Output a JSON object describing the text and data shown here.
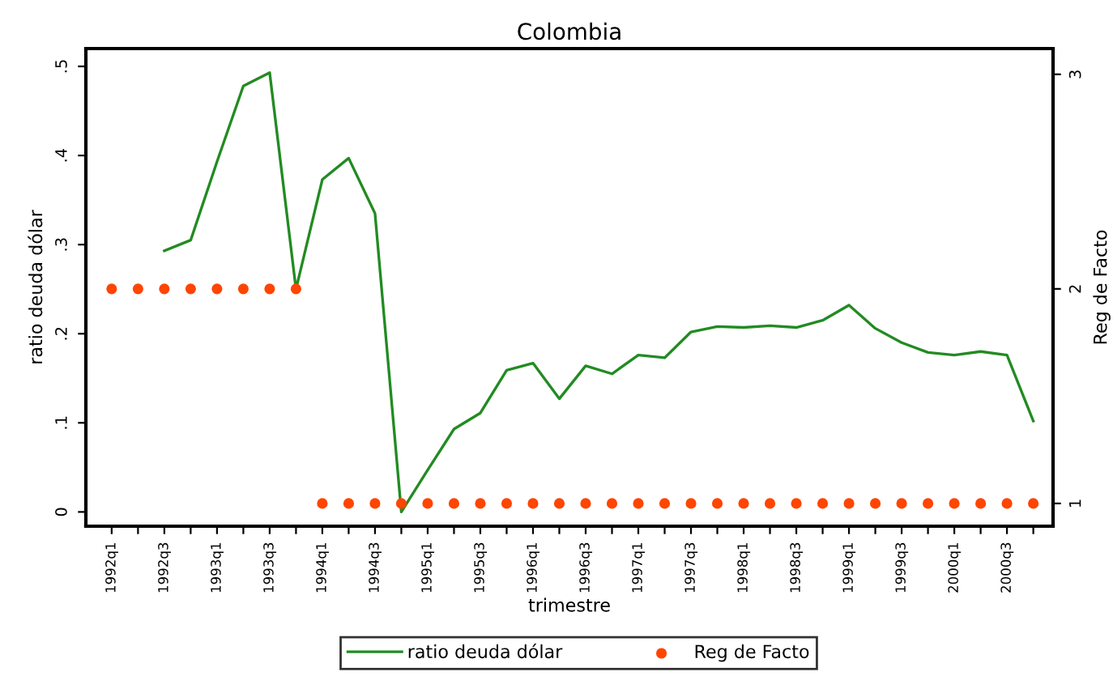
{
  "chart_data": {
    "type": "line",
    "title": "Colombia",
    "xlabel": "trimestre",
    "ylabel": "ratio deuda dólar",
    "y2label": "Reg de Facto",
    "categories": [
      "1992q1",
      null,
      "1992q3",
      null,
      "1993q1",
      null,
      "1993q3",
      null,
      "1994q1",
      null,
      "1994q3",
      null,
      "1995q1",
      null,
      "1995q3",
      null,
      "1996q1",
      null,
      "1996q3",
      null,
      "1997q1",
      null,
      "1997q3",
      null,
      "1998q1",
      null,
      "1998q3",
      null,
      "1999q1",
      null,
      "1999q3",
      null,
      "2000q1",
      null,
      "2000q3",
      null
    ],
    "series": [
      {
        "name": "ratio deuda dólar",
        "type": "line",
        "color": "#228b22",
        "line_style": "solid",
        "values": [
          null,
          null,
          0.293,
          0.305,
          0.393,
          0.478,
          0.493,
          0.25,
          0.373,
          0.397,
          0.335,
          0.0,
          0.047,
          0.093,
          0.111,
          0.159,
          0.167,
          0.127,
          0.164,
          0.155,
          0.176,
          0.173,
          0.202,
          0.208,
          0.207,
          0.209,
          0.207,
          0.215,
          0.232,
          0.206,
          0.19,
          0.179,
          0.176,
          0.18,
          0.176,
          0.102
        ]
      },
      {
        "name": "Reg de Facto",
        "type": "scatter",
        "axis": "y2",
        "marker": "circle",
        "color": "#ff4500",
        "values": [
          2,
          2,
          2,
          2,
          2,
          2,
          2,
          2,
          1,
          1,
          1,
          1,
          1,
          1,
          1,
          1,
          1,
          1,
          1,
          1,
          1,
          1,
          1,
          1,
          1,
          1,
          1,
          1,
          1,
          1,
          1,
          1,
          1,
          1,
          1,
          1
        ]
      }
    ],
    "ylim": [
      -0.016,
      0.52
    ],
    "yticks": [
      0,
      {
        "value": 0.1,
        "label": ".1"
      },
      {
        "value": 0.2,
        "label": ".2"
      },
      {
        "value": 0.3,
        "label": ".3"
      },
      {
        "value": 0.4,
        "label": ".4"
      },
      {
        "value": 0.5,
        "label": ".5"
      }
    ],
    "y2lim": [
      0.894,
      3.12
    ],
    "y2ticks": [
      1,
      2,
      3
    ],
    "grid": false,
    "legend": "bottom"
  }
}
